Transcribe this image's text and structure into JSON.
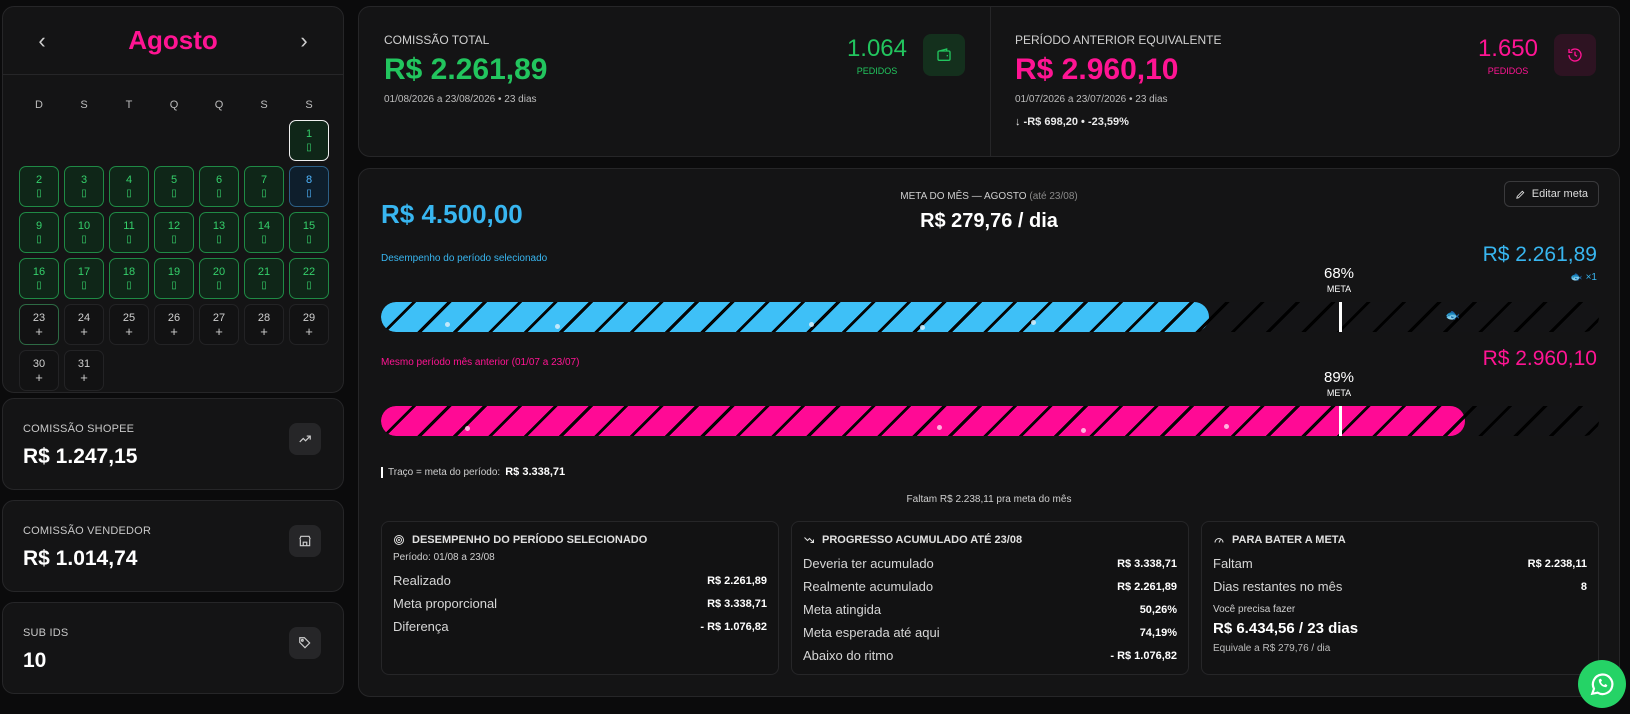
{
  "calendar": {
    "month": "Agosto",
    "prev": "‹",
    "next": "›",
    "weekdays": [
      "D",
      "S",
      "T",
      "Q",
      "Q",
      "S",
      "S"
    ],
    "plus": "+"
  },
  "side": {
    "shopee": {
      "label": "COMISSÃO SHOPEE",
      "value": "R$ 1.247,15",
      "icon": "trending-up-icon"
    },
    "vendedor": {
      "label": "COMISSÃO VENDEDOR",
      "value": "R$ 1.014,74",
      "icon": "store-icon"
    },
    "subids": {
      "label": "SUB IDS",
      "value": "10",
      "icon": "tag-icon"
    }
  },
  "summary": {
    "current": {
      "title": "COMISSÃO TOTAL",
      "value": "R$ 2.261,89",
      "dates": "01/08/2026 a 23/08/2026 • 23 dias",
      "orders": "1.064",
      "orders_label": "PEDIDOS",
      "color": "#22c55e"
    },
    "previous": {
      "title": "PERÍODO ANTERIOR EQUIVALENTE",
      "value": "R$ 2.960,10",
      "dates": "01/07/2026 a 23/07/2026 • 23 dias",
      "orders": "1.650",
      "orders_label": "PEDIDOS",
      "diff": "↓  -R$ 698,20 • -23,59%",
      "color": "#ff1493"
    }
  },
  "goal": {
    "monthly": "R$ 4.500,00",
    "header": "META DO MÊS — AGOSTO",
    "header_note": "(até 23/08)",
    "per_day": "R$ 279,76 / dia",
    "edit": "Editar meta",
    "current_row": {
      "label": "Desempenho do período selecionado",
      "value": "R$ 2.261,89",
      "pct": "68%",
      "meta": "META",
      "badge": "×1",
      "progress": 0.68
    },
    "previous_row": {
      "label": "Mesmo período mês anterior (01/07 a 23/07)",
      "value": "R$ 2.960,10",
      "pct": "89%",
      "meta": "META",
      "progress": 0.89
    },
    "legend_text": "Traço = meta do período:",
    "legend_value": "R$ 3.338,71",
    "remaining": "Faltam R$ 2.238,11 pra meta do mês"
  },
  "panels": {
    "p1": {
      "title": "DESEMPENHO DO PERÍODO SELECIONADO",
      "sub": "Período: 01/08 a 23/08",
      "rows": [
        [
          "Realizado",
          "R$ 2.261,89"
        ],
        [
          "Meta proporcional",
          "R$ 3.338,71"
        ],
        [
          "Diferença",
          "- R$ 1.076,82"
        ]
      ]
    },
    "p2": {
      "title": "PROGRESSO ACUMULADO ATÉ 23/08",
      "rows": [
        [
          "Deveria ter acumulado",
          "R$ 3.338,71"
        ],
        [
          "Realmente acumulado",
          "R$ 2.261,89"
        ],
        [
          "Meta atingida",
          "50,26%"
        ],
        [
          "Meta esperada até aqui",
          "74,19%"
        ],
        [
          "Abaixo do ritmo",
          "- R$ 1.076,82"
        ]
      ]
    },
    "p3": {
      "title": "PARA BATER A META",
      "rows": [
        [
          "Faltam",
          "R$ 2.238,11"
        ],
        [
          "Dias restantes no mês",
          "8"
        ]
      ],
      "need": "Você precisa fazer",
      "need_value": "R$ 6.434,56 / 23 dias",
      "equiv": "Equivale a R$ 279,76 / dia"
    }
  }
}
